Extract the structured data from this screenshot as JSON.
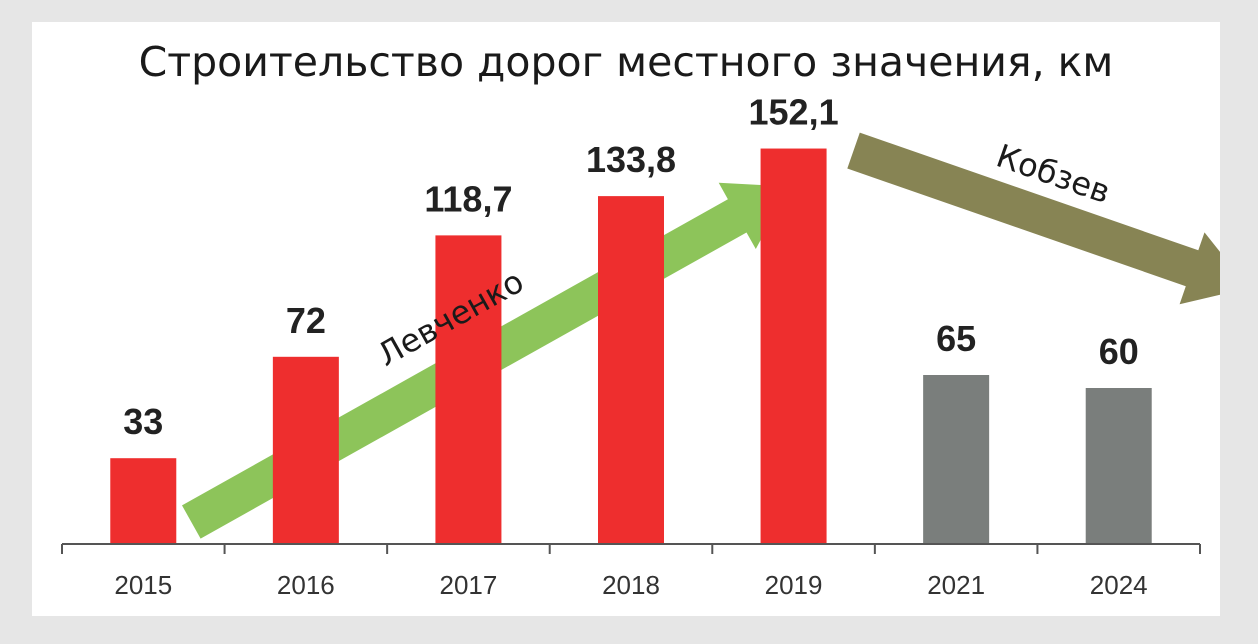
{
  "chart_data": {
    "type": "bar",
    "title": "Строительство дорог местного значения, км",
    "categories": [
      "2015",
      "2016",
      "2017",
      "2018",
      "2019",
      "2021",
      "2024"
    ],
    "values": [
      33,
      72,
      118.7,
      133.8,
      152.1,
      65,
      60
    ],
    "value_labels": [
      "33",
      "72",
      "118,7",
      "133,8",
      "152,1",
      "65",
      "60"
    ],
    "bar_colors": [
      "#ee2e2e",
      "#ee2e2e",
      "#ee2e2e",
      "#ee2e2e",
      "#ee2e2e",
      "#7a7e7c",
      "#7a7e7c"
    ],
    "ylim": [
      0,
      170
    ],
    "grid": false,
    "annotations": [
      {
        "text": "Левченко",
        "color": "#8dc45a",
        "from": "2015",
        "to": "2019",
        "direction": "up"
      },
      {
        "text": "Кобзев",
        "color": "#878454",
        "from": "2019",
        "to": "2024",
        "direction": "down"
      }
    ]
  }
}
